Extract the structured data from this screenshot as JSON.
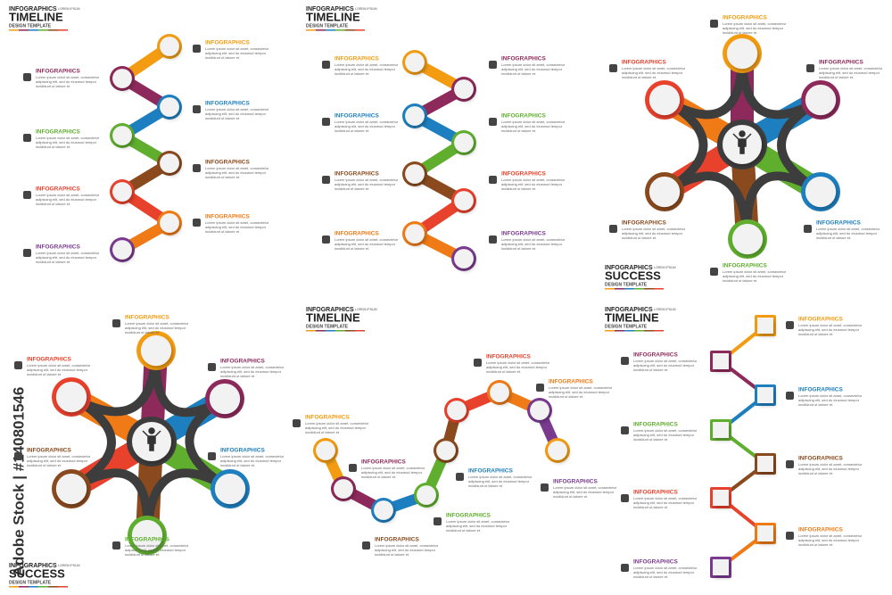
{
  "watermark": "Adobe Stock | #140801546",
  "panels": [
    {
      "header": {
        "small": "INFOGRAPHICS",
        "tag": "LOREM IPSUM",
        "title": "TIMELINE",
        "subtitle": "DESIGN TEMPLATE"
      },
      "items": [
        {
          "label": "INFOGRAPHICS",
          "text": [
            "Lorem ipsum dolor sit amet, consectetur",
            "adipiscing elit, sed do eiusmod tempor",
            "incididunt ut labore et."
          ]
        },
        {
          "label": "INFOGRAPHICS",
          "text": [
            "Lorem ipsum dolor sit amet, consectetur",
            "adipiscing elit, sed do eiusmod tempor",
            "incididunt ut labore et."
          ]
        },
        {
          "label": "INFOGRAPHICS",
          "text": [
            "Lorem ipsum dolor sit amet, consectetur",
            "adipiscing elit, sed do eiusmod tempor",
            "incididunt ut labore et."
          ]
        },
        {
          "label": "INFOGRAPHICS",
          "text": [
            "Lorem ipsum dolor sit amet, consectetur",
            "adipiscing elit, sed do eiusmod tempor",
            "incididunt ut labore et."
          ]
        },
        {
          "label": "INFOGRAPHICS",
          "text": [
            "Lorem ipsum dolor sit amet, consectetur",
            "adipiscing elit, sed do eiusmod tempor",
            "incididunt ut labore et."
          ]
        },
        {
          "label": "INFOGRAPHICS",
          "text": [
            "Lorem ipsum dolor sit amet, consectetur",
            "adipiscing elit, sed do eiusmod tempor",
            "incididunt ut labore et."
          ]
        },
        {
          "label": "INFOGRAPHICS",
          "text": [
            "Lorem ipsum dolor sit amet, consectetur",
            "adipiscing elit, sed do eiusmod tempor",
            "incididunt ut labore et."
          ]
        },
        {
          "label": "INFOGRAPHICS",
          "text": [
            "Lorem ipsum dolor sit amet, consectetur",
            "adipiscing elit, sed do eiusmod tempor",
            "incididunt ut labore et."
          ]
        }
      ]
    },
    {
      "header": {
        "small": "INFOGRAPHICS",
        "tag": "LOREM IPSUM",
        "title": "TIMELINE",
        "subtitle": "DESIGN TEMPLATE"
      },
      "items": [
        {
          "label": "INFOGRAPHICS",
          "text": [
            "Lorem ipsum dolor sit amet, consectetur",
            "adipiscing elit, sed do eiusmod tempor",
            "incididunt ut labore et."
          ]
        },
        {
          "label": "INFOGRAPHICS",
          "text": [
            "Lorem ipsum dolor sit amet, consectetur",
            "adipiscing elit, sed do eiusmod tempor",
            "incididunt ut labore et."
          ]
        },
        {
          "label": "INFOGRAPHICS",
          "text": [
            "Lorem ipsum dolor sit amet, consectetur",
            "adipiscing elit, sed do eiusmod tempor",
            "incididunt ut labore et."
          ]
        },
        {
          "label": "INFOGRAPHICS",
          "text": [
            "Lorem ipsum dolor sit amet, consectetur",
            "adipiscing elit, sed do eiusmod tempor",
            "incididunt ut labore et."
          ]
        },
        {
          "label": "INFOGRAPHICS",
          "text": [
            "Lorem ipsum dolor sit amet, consectetur",
            "adipiscing elit, sed do eiusmod tempor",
            "incididunt ut labore et."
          ]
        },
        {
          "label": "INFOGRAPHICS",
          "text": [
            "Lorem ipsum dolor sit amet, consectetur",
            "adipiscing elit, sed do eiusmod tempor",
            "incididunt ut labore et."
          ]
        },
        {
          "label": "INFOGRAPHICS",
          "text": [
            "Lorem ipsum dolor sit amet, consectetur",
            "adipiscing elit, sed do eiusmod tempor",
            "incididunt ut labore et."
          ]
        },
        {
          "label": "INFOGRAPHICS",
          "text": [
            "Lorem ipsum dolor sit amet, consectetur",
            "adipiscing elit, sed do eiusmod tempor",
            "incididunt ut labore et."
          ]
        }
      ]
    },
    {
      "header": {
        "small": "INFOGRAPHICS",
        "tag": "LOREM IPSUM",
        "title": "SUCCESS",
        "subtitle": "DESIGN TEMPLATE"
      },
      "items": [
        {
          "label": "INFOGRAPHICS",
          "text": [
            "Lorem ipsum dolor sit amet, consectetur",
            "adipiscing elit, sed do eiusmod tempor",
            "incididunt ut labore et."
          ]
        },
        {
          "label": "INFOGRAPHICS",
          "text": [
            "Lorem ipsum dolor sit amet, consectetur",
            "adipiscing elit, sed do eiusmod tempor",
            "incididunt ut labore et."
          ]
        },
        {
          "label": "INFOGRAPHICS",
          "text": [
            "Lorem ipsum dolor sit amet, consectetur",
            "adipiscing elit, sed do eiusmod tempor",
            "incididunt ut labore et."
          ]
        },
        {
          "label": "INFOGRAPHICS",
          "text": [
            "Lorem ipsum dolor sit amet, consectetur",
            "adipiscing elit, sed do eiusmod tempor",
            "incididunt ut labore et."
          ]
        },
        {
          "label": "INFOGRAPHICS",
          "text": [
            "Lorem ipsum dolor sit amet, consectetur",
            "adipiscing elit, sed do eiusmod tempor",
            "incididunt ut labore et."
          ]
        },
        {
          "label": "INFOGRAPHICS",
          "text": [
            "Lorem ipsum dolor sit amet, consectetur",
            "adipiscing elit, sed do eiusmod tempor",
            "incididunt ut labore et."
          ]
        }
      ]
    },
    {
      "header": {
        "small": "INFOGRAPHICS",
        "tag": "LOREM IPSUM",
        "title": "SUCCESS",
        "subtitle": "DESIGN TEMPLATE"
      },
      "items": [
        {
          "label": "INFOGRAPHICS",
          "text": [
            "Lorem ipsum dolor sit amet, consectetur",
            "adipiscing elit, sed do eiusmod tempor",
            "incididunt ut labore et."
          ]
        },
        {
          "label": "INFOGRAPHICS",
          "text": [
            "Lorem ipsum dolor sit amet, consectetur",
            "adipiscing elit, sed do eiusmod tempor",
            "incididunt ut labore et."
          ]
        },
        {
          "label": "INFOGRAPHICS",
          "text": [
            "Lorem ipsum dolor sit amet, consectetur",
            "adipiscing elit, sed do eiusmod tempor",
            "incididunt ut labore et."
          ]
        },
        {
          "label": "INFOGRAPHICS",
          "text": [
            "Lorem ipsum dolor sit amet, consectetur",
            "adipiscing elit, sed do eiusmod tempor",
            "incididunt ut labore et."
          ]
        },
        {
          "label": "INFOGRAPHICS",
          "text": [
            "Lorem ipsum dolor sit amet, consectetur",
            "adipiscing elit, sed do eiusmod tempor",
            "incididunt ut labore et."
          ]
        },
        {
          "label": "INFOGRAPHICS",
          "text": [
            "Lorem ipsum dolor sit amet, consectetur",
            "adipiscing elit, sed do eiusmod tempor",
            "incididunt ut labore et."
          ]
        }
      ]
    },
    {
      "header": {
        "small": "INFOGRAPHICS",
        "tag": "LOREM IPSUM",
        "title": "TIMELINE",
        "subtitle": "DESIGN TEMPLATE"
      },
      "items": [
        {
          "label": "INFOGRAPHICS",
          "text": [
            "Lorem ipsum dolor sit amet, consectetur",
            "adipiscing elit, sed do eiusmod tempor",
            "incididunt ut labore et."
          ]
        },
        {
          "label": "INFOGRAPHICS",
          "text": [
            "Lorem ipsum dolor sit amet, consectetur",
            "adipiscing elit, sed do eiusmod tempor",
            "incididunt ut labore et."
          ]
        },
        {
          "label": "INFOGRAPHICS",
          "text": [
            "Lorem ipsum dolor sit amet, consectetur",
            "adipiscing elit, sed do eiusmod tempor",
            "incididunt ut labore et."
          ]
        },
        {
          "label": "INFOGRAPHICS",
          "text": [
            "Lorem ipsum dolor sit amet, consectetur",
            "adipiscing elit, sed do eiusmod tempor",
            "incididunt ut labore et."
          ]
        },
        {
          "label": "INFOGRAPHICS",
          "text": [
            "Lorem ipsum dolor sit amet, consectetur",
            "adipiscing elit, sed do eiusmod tempor",
            "incididunt ut labore et."
          ]
        },
        {
          "label": "INFOGRAPHICS",
          "text": [
            "Lorem ipsum dolor sit amet, consectetur",
            "adipiscing elit, sed do eiusmod tempor",
            "incididunt ut labore et."
          ]
        },
        {
          "label": "INFOGRAPHICS",
          "text": [
            "Lorem ipsum dolor sit amet, consectetur",
            "adipiscing elit, sed do eiusmod tempor",
            "incididunt ut labore et."
          ]
        },
        {
          "label": "INFOGRAPHICS",
          "text": [
            "Lorem ipsum dolor sit amet, consectetur",
            "adipiscing elit, sed do eiusmod tempor",
            "incididunt ut labore et."
          ]
        }
      ]
    },
    {
      "header": {
        "small": "INFOGRAPHICS",
        "tag": "LOREM IPSUM",
        "title": "TIMELINE",
        "subtitle": "DESIGN TEMPLATE"
      },
      "items": [
        {
          "label": "INFOGRAPHICS",
          "text": [
            "Lorem ipsum dolor sit amet, consectetur",
            "adipiscing elit, sed do eiusmod tempor",
            "incididunt ut labore et."
          ]
        },
        {
          "label": "INFOGRAPHICS",
          "text": [
            "Lorem ipsum dolor sit amet, consectetur",
            "adipiscing elit, sed do eiusmod tempor",
            "incididunt ut labore et."
          ]
        },
        {
          "label": "INFOGRAPHICS",
          "text": [
            "Lorem ipsum dolor sit amet, consectetur",
            "adipiscing elit, sed do eiusmod tempor",
            "incididunt ut labore et."
          ]
        },
        {
          "label": "INFOGRAPHICS",
          "text": [
            "Lorem ipsum dolor sit amet, consectetur",
            "adipiscing elit, sed do eiusmod tempor",
            "incididunt ut labore et."
          ]
        },
        {
          "label": "INFOGRAPHICS",
          "text": [
            "Lorem ipsum dolor sit amet, consectetur",
            "adipiscing elit, sed do eiusmod tempor",
            "incididunt ut labore et."
          ]
        },
        {
          "label": "INFOGRAPHICS",
          "text": [
            "Lorem ipsum dolor sit amet, consectetur",
            "adipiscing elit, sed do eiusmod tempor",
            "incididunt ut labore et."
          ]
        },
        {
          "label": "INFOGRAPHICS",
          "text": [
            "Lorem ipsum dolor sit amet, consectetur",
            "adipiscing elit, sed do eiusmod tempor",
            "incididunt ut labore et."
          ]
        },
        {
          "label": "INFOGRAPHICS",
          "text": [
            "Lorem ipsum dolor sit amet, consectetur",
            "adipiscing elit, sed do eiusmod tempor",
            "incididunt ut labore et."
          ]
        }
      ]
    }
  ]
}
